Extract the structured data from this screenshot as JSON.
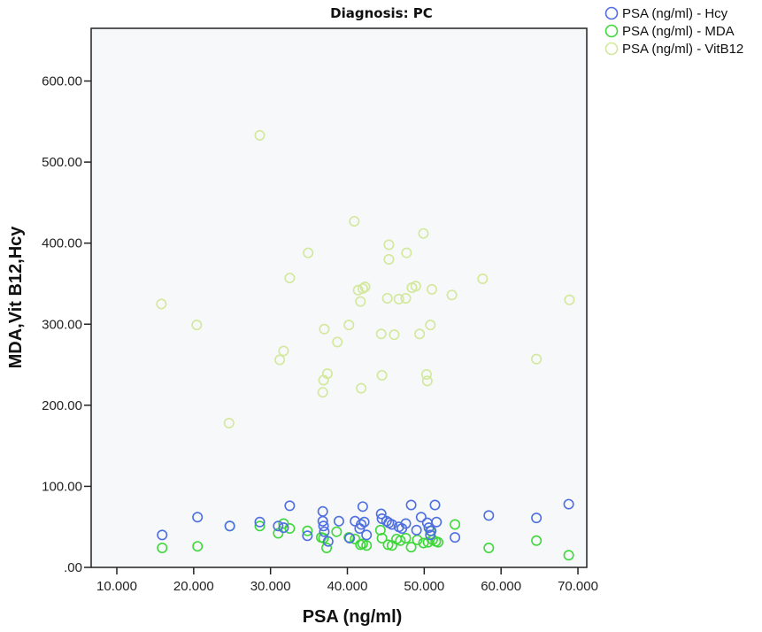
{
  "chart_data": {
    "type": "scatter",
    "title": "Diagnosis: PC",
    "xlabel": "PSA (ng/ml)",
    "ylabel": "MDA,Vit B12,Hcy",
    "xlim": [
      6.66,
      71.15
    ],
    "ylim": [
      0,
      665
    ],
    "xticks": [
      10,
      20,
      30,
      40,
      50,
      60,
      70
    ],
    "xtick_labels": [
      "10.000",
      "20.000",
      "30.000",
      "40.000",
      "50.000",
      "60.000",
      "70.000"
    ],
    "yticks": [
      0,
      100,
      200,
      300,
      400,
      500,
      600
    ],
    "ytick_labels": [
      ".00",
      "100.00",
      "200.00",
      "300.00",
      "400.00",
      "500.00",
      "600.00"
    ],
    "grid": false,
    "legend_position": "top-right-outside",
    "plot_background": "#f6f8fa",
    "series": [
      {
        "name": "PSA (ng/ml) - Hcy",
        "color": "#4f6fe0",
        "x": [
          15.9,
          20.5,
          24.7,
          28.6,
          31.0,
          31.7,
          32.5,
          34.8,
          36.8,
          36.8,
          36.9,
          37.0,
          37.5,
          38.9,
          40.3,
          41.0,
          41.6,
          41.8,
          42.0,
          42.2,
          42.5,
          44.4,
          44.5,
          45.1,
          45.4,
          45.8,
          46.7,
          47.1,
          47.6,
          48.3,
          49.0,
          49.6,
          50.4,
          50.6,
          50.8,
          50.9,
          51.4,
          51.6,
          54.0,
          58.4,
          64.6,
          68.8
        ],
        "y": [
          40,
          62,
          51,
          56,
          51,
          49,
          76,
          39,
          69,
          57,
          51,
          44,
          32,
          57,
          36,
          57,
          48,
          53,
          75,
          56,
          40,
          66,
          60,
          57,
          55,
          53,
          50,
          48,
          54,
          77,
          46,
          62,
          55,
          49,
          40,
          45,
          77,
          56,
          37,
          64,
          61,
          78
        ]
      },
      {
        "name": "PSA (ng/ml) - MDA",
        "color": "#3fd83a",
        "x": [
          15.9,
          20.5,
          24.7,
          28.6,
          31.0,
          31.7,
          32.5,
          34.8,
          36.6,
          36.9,
          37.3,
          38.6,
          40.2,
          41.0,
          41.7,
          42.0,
          42.5,
          44.3,
          44.5,
          45.3,
          45.8,
          46.4,
          46.9,
          47.6,
          48.3,
          49.1,
          49.9,
          50.5,
          50.8,
          51.1,
          51.5,
          51.8,
          54.0,
          58.4,
          64.6,
          68.8
        ],
        "y": [
          24,
          26,
          51,
          51,
          42,
          54,
          48,
          45,
          37,
          36,
          24,
          44,
          37,
          35,
          28,
          29,
          27,
          46,
          36,
          28,
          27,
          35,
          33,
          36,
          25,
          34,
          30,
          31,
          45,
          34,
          32,
          31,
          53,
          24,
          33,
          15
        ]
      },
      {
        "name": "PSA (ng/ml) - VitB12",
        "color": "#d2e89a",
        "x": [
          15.8,
          20.4,
          24.6,
          28.6,
          31.2,
          31.7,
          32.5,
          34.9,
          36.8,
          36.9,
          37.0,
          37.4,
          38.7,
          40.2,
          40.9,
          41.4,
          41.7,
          41.8,
          42.0,
          42.3,
          44.4,
          44.5,
          45.2,
          45.4,
          45.4,
          46.1,
          46.7,
          47.6,
          47.7,
          48.4,
          48.9,
          49.4,
          49.9,
          50.3,
          50.4,
          50.8,
          51.0,
          53.6,
          57.6,
          64.6,
          68.9
        ],
        "y": [
          325,
          299,
          178,
          533,
          256,
          267,
          357,
          388,
          216,
          231,
          294,
          239,
          278,
          299,
          427,
          342,
          328,
          221,
          344,
          346,
          288,
          237,
          332,
          398,
          380,
          287,
          331,
          332,
          388,
          345,
          347,
          288,
          412,
          238,
          230,
          299,
          343,
          336,
          356,
          257,
          330
        ]
      }
    ]
  }
}
